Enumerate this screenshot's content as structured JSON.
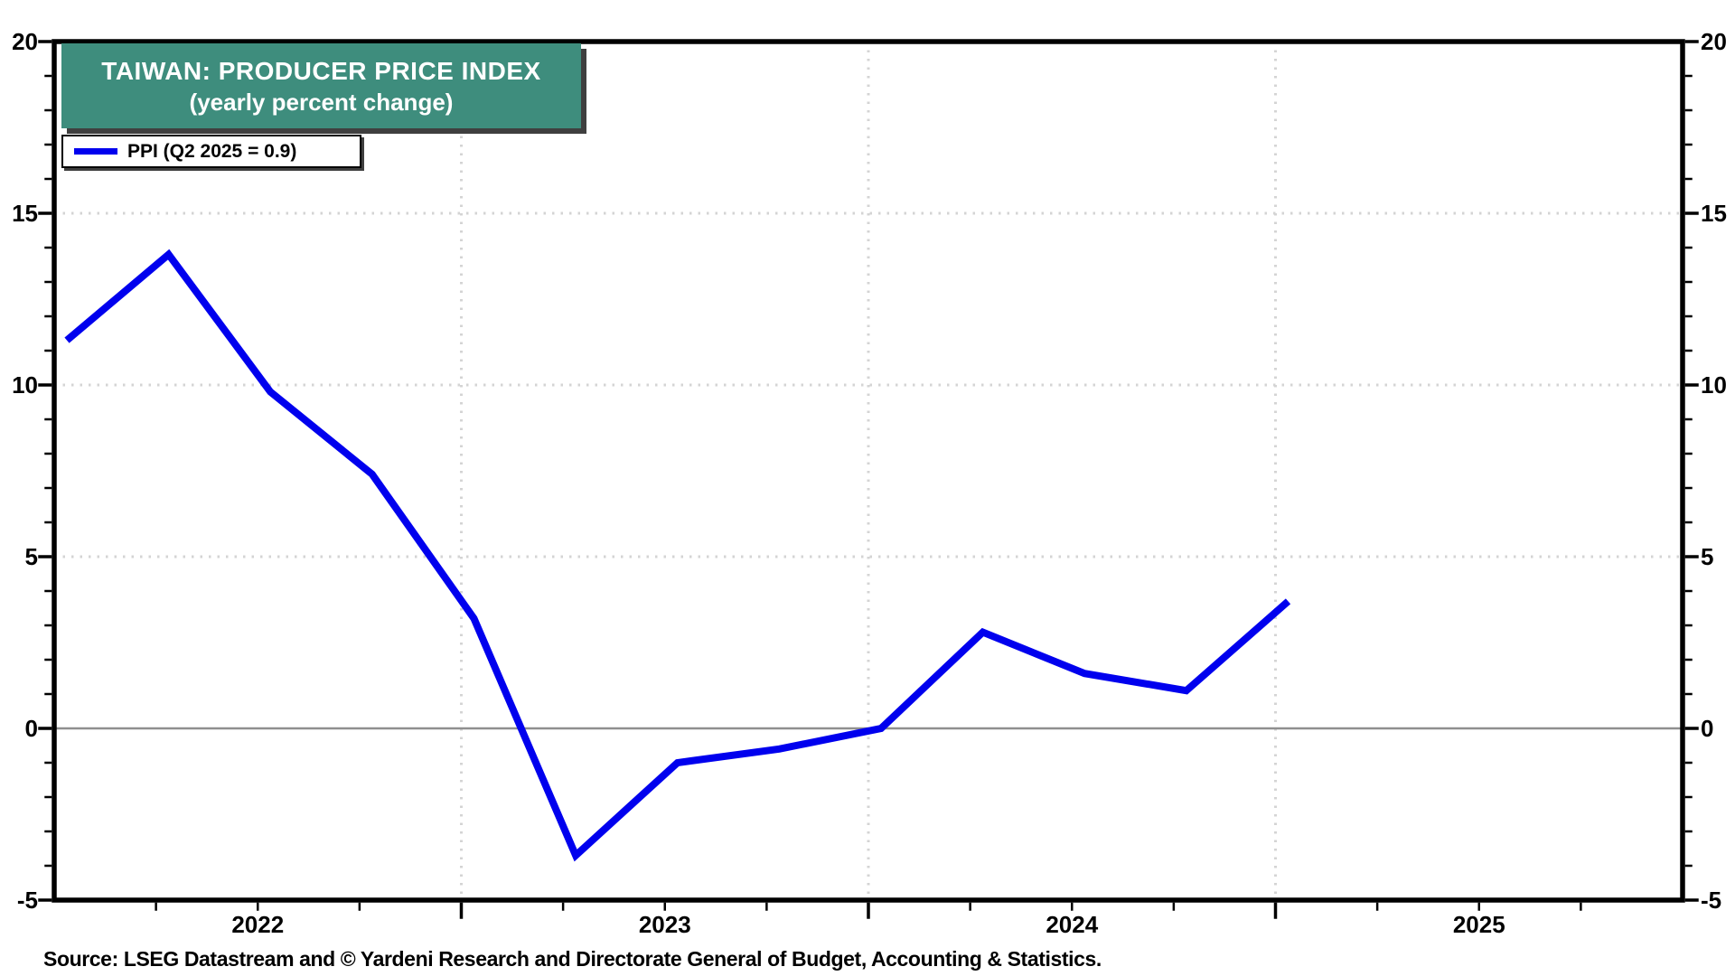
{
  "header": {
    "title": "TAIWAN: PRODUCER PRICE INDEX",
    "subtitle": "(yearly percent change)",
    "box_color": "#3e8d7d",
    "text_color": "#ffffff"
  },
  "legend": {
    "label": "PPI (Q2 2025 = 0.9)",
    "line_color": "#0000ee"
  },
  "source": {
    "text": "Source: LSEG Datastream and © Yardeni Research and Directorate General of Budget, Accounting & Statistics."
  },
  "chart_data": {
    "type": "line",
    "title": "TAIWAN: PRODUCER PRICE INDEX (yearly percent change)",
    "series": [
      {
        "name": "PPI",
        "color": "#0000ee",
        "categories": [
          "Q1 2022",
          "Q2 2022",
          "Q3 2022",
          "Q4 2022",
          "Q1 2023",
          "Q2 2023",
          "Q3 2023",
          "Q4 2023",
          "Q1 2024",
          "Q2 2024",
          "Q3 2024",
          "Q4 2024",
          "Q1 2025"
        ],
        "values": [
          11.3,
          13.8,
          9.8,
          7.4,
          3.2,
          -3.7,
          -1.0,
          -0.6,
          0.0,
          2.8,
          1.6,
          1.1,
          3.7
        ]
      }
    ],
    "ylabel": "",
    "xlabel": "",
    "ylim": [
      -5,
      20
    ],
    "ytick_major_values": [
      20,
      15,
      10,
      5,
      0,
      -5
    ],
    "ytick_minor_step": 1,
    "y_dotted_gridlines": [
      15,
      10,
      5
    ],
    "zero_line_value": 0,
    "xlim_years": [
      2022,
      2026
    ],
    "x_year_labels": [
      "2022",
      "2023",
      "2024",
      "2025"
    ],
    "x_dotted_gridline_years": [
      2023,
      2024,
      2025
    ],
    "x_minor_tick_step_years": 0.25,
    "point_year_offset": 0.031,
    "point_step_years": 0.25,
    "legend_position": "top-left",
    "grid_color": "#d4d4d4",
    "zero_line_color": "#8f8f8f",
    "frame_color": "#000000",
    "axes_mirrored": true
  }
}
